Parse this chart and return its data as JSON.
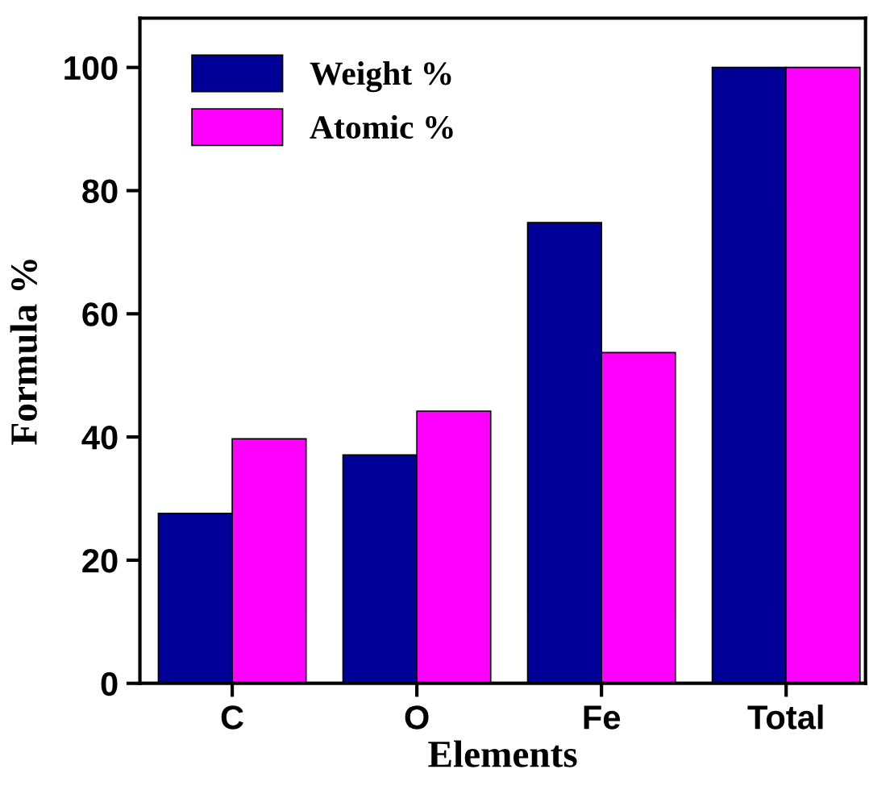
{
  "chart_data": {
    "type": "bar",
    "xlabel": "Elements",
    "ylabel": "Formula %",
    "categories": [
      "C",
      "O",
      "Fe",
      "Total"
    ],
    "series": [
      {
        "name": "Weight %",
        "color": "#000099",
        "values": [
          27.6,
          37.1,
          74.8,
          100
        ]
      },
      {
        "name": "Atomic %",
        "color": "#ff00ff",
        "values": [
          39.7,
          44.2,
          53.7,
          100
        ]
      }
    ],
    "ylim": [
      0,
      108
    ],
    "yticks": [
      0,
      20,
      40,
      60,
      80,
      100
    ],
    "grid": false,
    "legend": "top left"
  }
}
